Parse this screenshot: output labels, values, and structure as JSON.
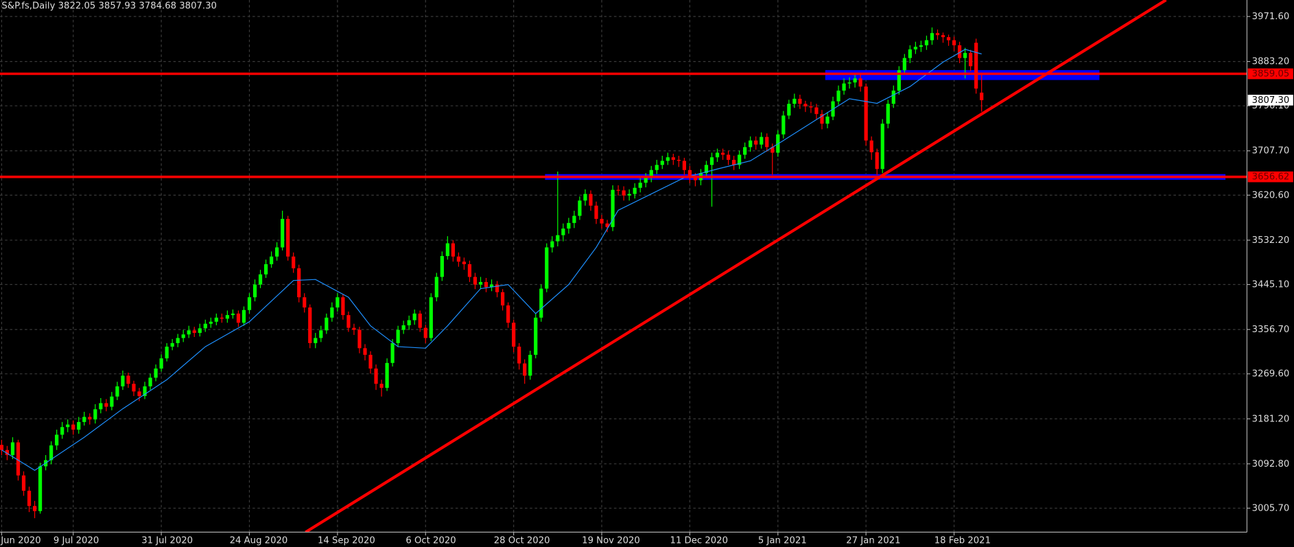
{
  "chart_data": {
    "type": "candlestick",
    "header": "S&P.fs,Daily  3822.05 3857.93 3784.68 3807.30",
    "up_color": "#00ff00",
    "down_color": "#ff0000",
    "grid": true,
    "ylim": [
      2958.6,
      4004
    ],
    "xlim": [
      -0.3,
      226.2
    ],
    "yticks": [
      {
        "value": 3971.6,
        "label": "3971.60"
      },
      {
        "value": 3883.2,
        "label": "3883.20"
      },
      {
        "value": 3796.1,
        "label": "3796.10"
      },
      {
        "value": 3707.7,
        "label": "3707.70"
      },
      {
        "value": 3620.6,
        "label": "3620.60"
      },
      {
        "value": 3532.2,
        "label": "3532.20"
      },
      {
        "value": 3445.1,
        "label": "3445.10"
      },
      {
        "value": 3356.7,
        "label": "3356.70"
      },
      {
        "value": 3269.6,
        "label": "3269.60"
      },
      {
        "value": 3181.2,
        "label": "3181.20"
      },
      {
        "value": 3092.8,
        "label": "3092.80"
      },
      {
        "value": 3005.7,
        "label": "3005.70"
      }
    ],
    "xticks": [
      {
        "value": 0,
        "label": "Jun 2020"
      },
      {
        "value": 13,
        "label": "9 Jul 2020"
      },
      {
        "value": 29,
        "label": "31 Jul 2020"
      },
      {
        "value": 45,
        "label": "24 Aug 2020"
      },
      {
        "value": 61,
        "label": "14 Sep 2020"
      },
      {
        "value": 77,
        "label": "6 Oct 2020"
      },
      {
        "value": 93,
        "label": "28 Oct 2020"
      },
      {
        "value": 109,
        "label": "19 Nov 2020"
      },
      {
        "value": 125,
        "label": "11 Dec 2020"
      },
      {
        "value": 141,
        "label": "5 Jan 2021"
      },
      {
        "value": 157,
        "label": "27 Jan 2021"
      },
      {
        "value": 173,
        "label": "18 Feb 2021"
      }
    ],
    "candles": {
      "open": [
        3130,
        3120,
        3110,
        3135,
        3070,
        3040,
        3010,
        3000,
        3088,
        3100,
        3129,
        3150,
        3165,
        3170,
        3160,
        3175,
        3185,
        3180,
        3200,
        3212,
        3205,
        3225,
        3245,
        3266,
        3250,
        3235,
        3226,
        3245,
        3262,
        3280,
        3300,
        3323,
        3330,
        3340,
        3347,
        3355,
        3350,
        3359,
        3368,
        3372,
        3380,
        3378,
        3385,
        3388,
        3370,
        3395,
        3420,
        3445,
        3465,
        3485,
        3500,
        3518,
        3574,
        3500,
        3477,
        3420,
        3400,
        3330,
        3340,
        3355,
        3380,
        3400,
        3420,
        3385,
        3360,
        3356,
        3320,
        3307,
        3280,
        3250,
        3242,
        3291,
        3330,
        3356,
        3365,
        3375,
        3388,
        3360,
        3340,
        3420,
        3460,
        3501,
        3526,
        3500,
        3490,
        3485,
        3460,
        3445,
        3450,
        3440,
        3445,
        3430,
        3404,
        3370,
        3323,
        3290,
        3266,
        3307,
        3380,
        3437,
        3518,
        3530,
        3542,
        3555,
        3566,
        3580,
        3610,
        3623,
        3600,
        3574,
        3565,
        3558,
        3631,
        3630,
        3620,
        3623,
        3635,
        3645,
        3655,
        3670,
        3680,
        3688,
        3695,
        3690,
        3688,
        3670,
        3655,
        3650,
        3664,
        3680,
        3695,
        3704,
        3700,
        3690,
        3680,
        3700,
        3715,
        3728,
        3720,
        3735,
        3715,
        3704,
        3740,
        3777,
        3800,
        3810,
        3800,
        3795,
        3793,
        3780,
        3761,
        3775,
        3805,
        3826,
        3840,
        3842,
        3850,
        3834,
        3728,
        3705,
        3672,
        3761,
        3800,
        3826,
        3866,
        3890,
        3907,
        3912,
        3915,
        3925,
        3939,
        3935,
        3931,
        3925,
        3915,
        3890,
        3900,
        3920,
        3822.05
      ],
      "high": [
        3140,
        3128,
        3145,
        3140,
        3078,
        3048,
        3020,
        3095,
        3110,
        3137,
        3160,
        3175,
        3180,
        3178,
        3185,
        3195,
        3192,
        3210,
        3222,
        3220,
        3234,
        3254,
        3276,
        3272,
        3256,
        3242,
        3254,
        3270,
        3288,
        3308,
        3330,
        3338,
        3348,
        3356,
        3364,
        3362,
        3368,
        3376,
        3380,
        3388,
        3388,
        3394,
        3396,
        3394,
        3402,
        3428,
        3455,
        3474,
        3494,
        3510,
        3528,
        3590,
        3580,
        3508,
        3484,
        3428,
        3406,
        3350,
        3364,
        3388,
        3410,
        3428,
        3426,
        3392,
        3368,
        3362,
        3328,
        3314,
        3288,
        3258,
        3300,
        3338,
        3364,
        3374,
        3384,
        3396,
        3394,
        3366,
        3428,
        3468,
        3510,
        3540,
        3532,
        3508,
        3498,
        3492,
        3468,
        3460,
        3458,
        3455,
        3452,
        3436,
        3410,
        3376,
        3330,
        3298,
        3315,
        3388,
        3445,
        3526,
        3540,
        3667,
        3565,
        3576,
        3590,
        3618,
        3632,
        3630,
        3608,
        3582,
        3572,
        3640,
        3640,
        3638,
        3632,
        3644,
        3654,
        3664,
        3678,
        3690,
        3698,
        3704,
        3702,
        3698,
        3694,
        3678,
        3664,
        3672,
        3688,
        3704,
        3712,
        3712,
        3708,
        3698,
        3708,
        3724,
        3736,
        3736,
        3744,
        3742,
        3722,
        3748,
        3786,
        3808,
        3820,
        3818,
        3806,
        3804,
        3800,
        3788,
        3784,
        3814,
        3836,
        3850,
        3852,
        3860,
        3858,
        3840,
        3736,
        3712,
        3770,
        3808,
        3836,
        3874,
        3898,
        3915,
        3922,
        3924,
        3934,
        3950,
        3946,
        3940,
        3936,
        3932,
        3922,
        3910,
        3906,
        3928,
        3857.93
      ],
      "low": [
        3110,
        3100,
        3102,
        3060,
        3030,
        2998,
        2986,
        2995,
        3080,
        3092,
        3120,
        3142,
        3155,
        3150,
        3152,
        3168,
        3170,
        3172,
        3192,
        3196,
        3198,
        3218,
        3238,
        3242,
        3226,
        3216,
        3220,
        3238,
        3255,
        3274,
        3294,
        3316,
        3322,
        3332,
        3340,
        3342,
        3343,
        3352,
        3360,
        3365,
        3370,
        3370,
        3378,
        3362,
        3364,
        3388,
        3412,
        3438,
        3458,
        3478,
        3492,
        3512,
        3492,
        3468,
        3410,
        3390,
        3320,
        3320,
        3332,
        3348,
        3372,
        3392,
        3376,
        3352,
        3346,
        3310,
        3296,
        3270,
        3238,
        3225,
        3236,
        3284,
        3322,
        3348,
        3356,
        3366,
        3352,
        3330,
        3334,
        3412,
        3452,
        3494,
        3490,
        3480,
        3474,
        3450,
        3436,
        3436,
        3430,
        3432,
        3420,
        3394,
        3360,
        3312,
        3278,
        3250,
        3258,
        3300,
        3372,
        3430,
        3508,
        3520,
        3530,
        3545,
        3556,
        3572,
        3600,
        3590,
        3564,
        3555,
        3548,
        3550,
        3620,
        3610,
        3610,
        3614,
        3626,
        3636,
        3646,
        3662,
        3672,
        3680,
        3680,
        3676,
        3660,
        3644,
        3638,
        3640,
        3656,
        3598,
        3686,
        3690,
        3680,
        3670,
        3672,
        3692,
        3706,
        3710,
        3712,
        3706,
        3660,
        3696,
        3732,
        3770,
        3792,
        3790,
        3784,
        3782,
        3770,
        3750,
        3752,
        3768,
        3798,
        3818,
        3830,
        3832,
        3824,
        3718,
        3690,
        3660,
        3664,
        3752,
        3792,
        3818,
        3858,
        3880,
        3898,
        3902,
        3906,
        3916,
        3926,
        3920,
        3914,
        3904,
        3880,
        3850,
        3864,
        3820,
        3784.68
      ],
      "close": [
        3120,
        3110,
        3135,
        3070,
        3040,
        3010,
        3000,
        3088,
        3100,
        3129,
        3150,
        3165,
        3170,
        3160,
        3175,
        3185,
        3180,
        3200,
        3212,
        3205,
        3225,
        3245,
        3266,
        3250,
        3235,
        3226,
        3245,
        3262,
        3280,
        3300,
        3323,
        3330,
        3340,
        3347,
        3355,
        3350,
        3359,
        3368,
        3372,
        3380,
        3378,
        3385,
        3388,
        3370,
        3395,
        3420,
        3445,
        3465,
        3485,
        3500,
        3518,
        3574,
        3500,
        3477,
        3420,
        3400,
        3330,
        3340,
        3355,
        3380,
        3400,
        3420,
        3385,
        3360,
        3356,
        3320,
        3307,
        3280,
        3250,
        3242,
        3291,
        3330,
        3356,
        3365,
        3375,
        3388,
        3360,
        3340,
        3420,
        3460,
        3501,
        3526,
        3500,
        3490,
        3485,
        3460,
        3445,
        3450,
        3440,
        3445,
        3430,
        3404,
        3370,
        3323,
        3290,
        3266,
        3307,
        3380,
        3437,
        3518,
        3530,
        3542,
        3555,
        3566,
        3580,
        3610,
        3623,
        3600,
        3574,
        3565,
        3558,
        3631,
        3630,
        3620,
        3623,
        3635,
        3645,
        3655,
        3670,
        3680,
        3688,
        3695,
        3690,
        3688,
        3670,
        3655,
        3650,
        3664,
        3680,
        3695,
        3704,
        3700,
        3690,
        3680,
        3700,
        3715,
        3728,
        3720,
        3735,
        3715,
        3704,
        3740,
        3777,
        3800,
        3810,
        3800,
        3795,
        3793,
        3780,
        3761,
        3775,
        3805,
        3826,
        3840,
        3842,
        3850,
        3834,
        3728,
        3705,
        3672,
        3761,
        3800,
        3826,
        3866,
        3890,
        3907,
        3912,
        3915,
        3925,
        3939,
        3935,
        3931,
        3925,
        3915,
        3890,
        3900,
        3874,
        3830,
        3807.3
      ]
    },
    "moving_average": {
      "color": "#1e90ff",
      "x": [
        0,
        6,
        15,
        22,
        30,
        37,
        45,
        53,
        57,
        63,
        67,
        72,
        77,
        81,
        87,
        92,
        97,
        103,
        108,
        112,
        118,
        124,
        130,
        136,
        142,
        148,
        154,
        159,
        165,
        171,
        175,
        178
      ],
      "values": [
        3120,
        3080,
        3145,
        3201,
        3258,
        3323,
        3372,
        3453,
        3455,
        3420,
        3364,
        3323,
        3320,
        3364,
        3437,
        3445,
        3388,
        3445,
        3518,
        3591,
        3623,
        3655,
        3672,
        3688,
        3728,
        3769,
        3810,
        3801,
        3834,
        3882,
        3907,
        3898
      ]
    },
    "zones": [
      {
        "color": "#0000ff",
        "x": [
          149.6,
          199.4
        ],
        "values": [
          3846.8,
          3866.3
        ]
      },
      {
        "color": "#0000ff",
        "x": [
          98.7,
          222.3
        ],
        "values": [
          3650.7,
          3662
        ]
      }
    ],
    "trendline": {
      "color": "#ff0000",
      "x": [
        55.2,
        211.5
      ],
      "values": [
        2958.6,
        4004
      ]
    },
    "hlines": [
      {
        "value": 3859.05,
        "label": "3859.05",
        "color": "#ff0000"
      },
      {
        "value": 3656.62,
        "label": "3656.62",
        "color": "#ff0000"
      }
    ],
    "price_label": {
      "value": 3807.3,
      "label": "3807.30"
    }
  }
}
